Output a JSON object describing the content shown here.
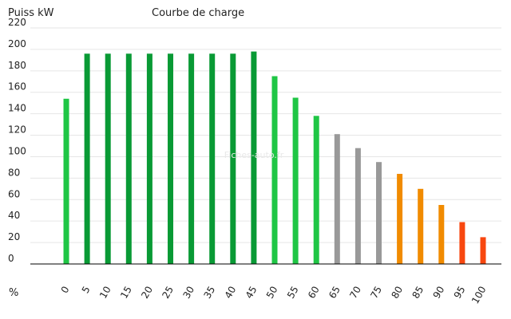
{
  "chart_data": {
    "type": "bar",
    "title": "Courbe de charge",
    "ylabel": "Puiss kW",
    "xlabel": "%",
    "watermark": "Fiches-auto.fr",
    "ylim": [
      0,
      220
    ],
    "yticks": [
      0,
      20,
      40,
      60,
      80,
      100,
      120,
      140,
      160,
      180,
      200,
      220
    ],
    "categories": [
      "0",
      "5",
      "10",
      "15",
      "20",
      "25",
      "30",
      "35",
      "40",
      "45",
      "50",
      "55",
      "60",
      "65",
      "70",
      "75",
      "80",
      "85",
      "90",
      "95",
      "100"
    ],
    "values": [
      154,
      196,
      196,
      196,
      196,
      196,
      196,
      196,
      196,
      198,
      175,
      155,
      138,
      121,
      108,
      95,
      84,
      70,
      55,
      39,
      25
    ],
    "bar_colors": [
      "#1fc645",
      "#099a35",
      "#099a35",
      "#099a35",
      "#099a35",
      "#099a35",
      "#099a35",
      "#099a35",
      "#099a35",
      "#099a35",
      "#1fc645",
      "#1fc645",
      "#1fc645",
      "#999999",
      "#999999",
      "#999999",
      "#f18b00",
      "#f18b00",
      "#f18b00",
      "#f8470f",
      "#f8470f"
    ],
    "grid": true,
    "legend": "none"
  }
}
